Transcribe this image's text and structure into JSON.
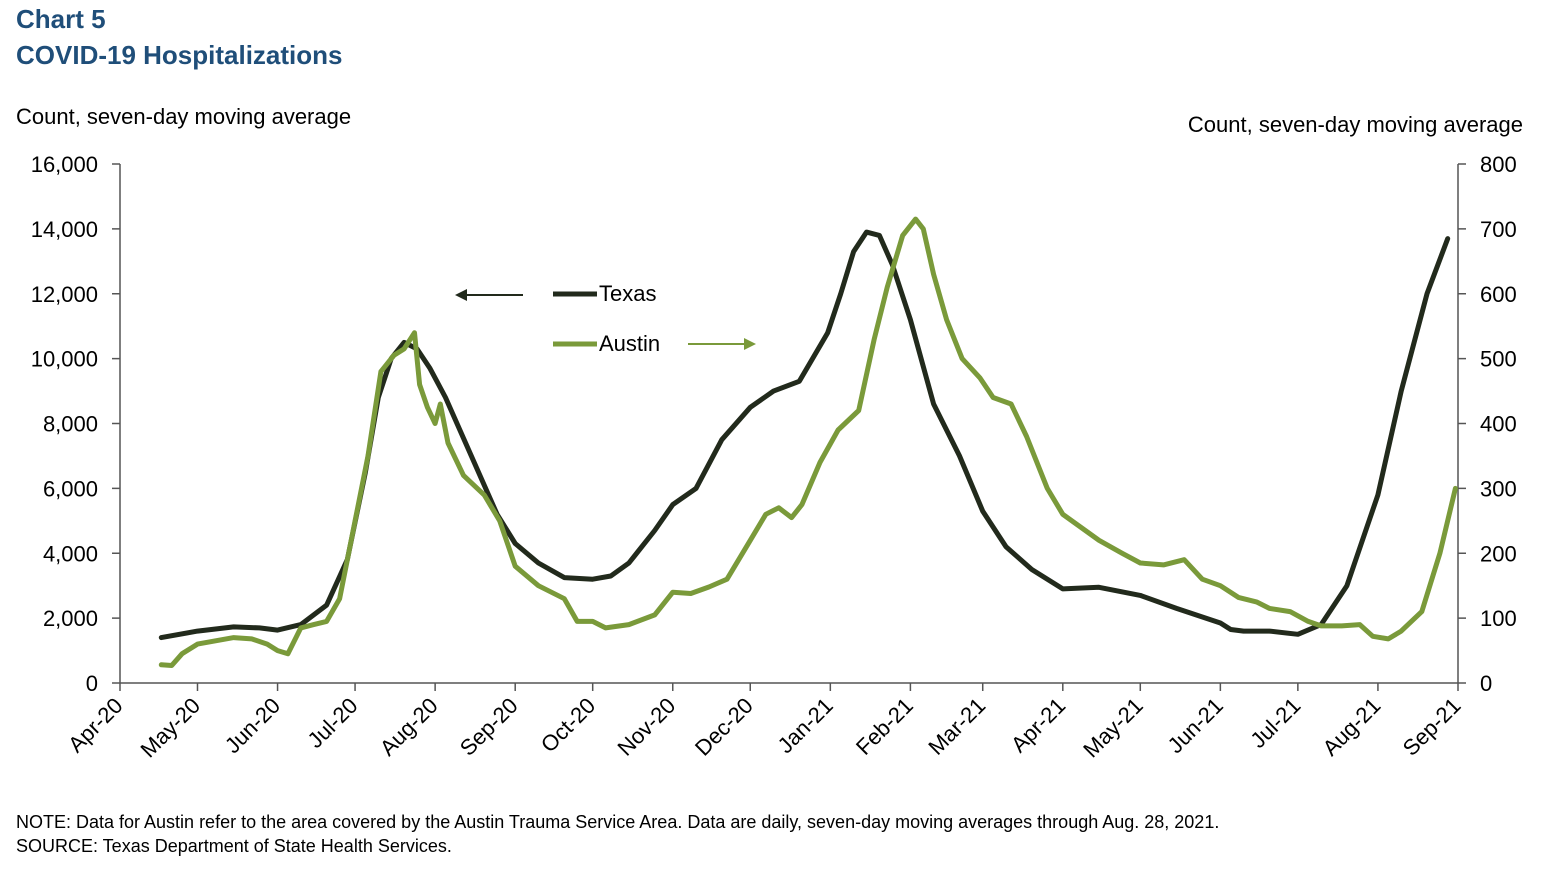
{
  "header": {
    "chart_number": "Chart 5",
    "title": "COVID-19 Hospitalizations"
  },
  "axis_labels": {
    "left": "Count, seven-day moving average",
    "right": "Count, seven-day moving average"
  },
  "footer": {
    "note": "NOTE: Data for Austin refer to the area covered by the Austin Trauma Service Area. Data are daily, seven-day moving averages through Aug. 28, 2021.",
    "source": "SOURCE: Texas Department of State Health Services."
  },
  "colors": {
    "title": "#1f4e79",
    "texas": "#222a1c",
    "austin": "#7a9a3a",
    "axis": "#555555"
  },
  "chart_data": {
    "type": "line",
    "title": "COVID-19 Hospitalizations",
    "xaxis": {
      "ticks": [
        "Apr-20",
        "May-20",
        "Jun-20",
        "Jul-20",
        "Aug-20",
        "Sep-20",
        "Oct-20",
        "Nov-20",
        "Dec-20",
        "Jan-21",
        "Feb-21",
        "Mar-21",
        "Apr-21",
        "May-21",
        "Jun-21",
        "Jul-21",
        "Aug-21",
        "Sep-21"
      ],
      "range": [
        "2020-04-01",
        "2021-09-01"
      ]
    },
    "yaxis_left": {
      "label": "Count, seven-day moving average",
      "ylim": [
        0,
        16000
      ],
      "ticks": [
        0,
        2000,
        4000,
        6000,
        8000,
        10000,
        12000,
        14000,
        16000
      ],
      "tick_labels": [
        "0",
        "2,000",
        "4,000",
        "6,000",
        "8,000",
        "10,000",
        "12,000",
        "14,000",
        "16,000"
      ]
    },
    "yaxis_right": {
      "label": "Count, seven-day moving average",
      "ylim": [
        0,
        800
      ],
      "ticks": [
        0,
        100,
        200,
        300,
        400,
        500,
        600,
        700,
        800
      ],
      "tick_labels": [
        "0",
        "100",
        "200",
        "300",
        "400",
        "500",
        "600",
        "700",
        "800"
      ]
    },
    "legend": {
      "placement": "center-left"
    },
    "series": [
      {
        "name": "Texas",
        "axis": "left",
        "points": [
          [
            "2020-04-17",
            1400
          ],
          [
            "2020-05-01",
            1600
          ],
          [
            "2020-05-15",
            1730
          ],
          [
            "2020-05-25",
            1700
          ],
          [
            "2020-06-01",
            1630
          ],
          [
            "2020-06-10",
            1800
          ],
          [
            "2020-06-20",
            2400
          ],
          [
            "2020-06-28",
            3800
          ],
          [
            "2020-07-05",
            6500
          ],
          [
            "2020-07-10",
            8800
          ],
          [
            "2020-07-15",
            10000
          ],
          [
            "2020-07-20",
            10500
          ],
          [
            "2020-07-25",
            10300
          ],
          [
            "2020-07-30",
            9700
          ],
          [
            "2020-08-05",
            8800
          ],
          [
            "2020-08-15",
            7000
          ],
          [
            "2020-08-25",
            5200
          ],
          [
            "2020-09-01",
            4300
          ],
          [
            "2020-09-10",
            3700
          ],
          [
            "2020-09-20",
            3250
          ],
          [
            "2020-10-01",
            3200
          ],
          [
            "2020-10-08",
            3300
          ],
          [
            "2020-10-15",
            3700
          ],
          [
            "2020-10-25",
            4700
          ],
          [
            "2020-11-01",
            5500
          ],
          [
            "2020-11-10",
            6000
          ],
          [
            "2020-11-20",
            7500
          ],
          [
            "2020-12-01",
            8500
          ],
          [
            "2020-12-10",
            9000
          ],
          [
            "2020-12-20",
            9300
          ],
          [
            "2020-12-31",
            10800
          ],
          [
            "2021-01-05",
            12000
          ],
          [
            "2021-01-10",
            13300
          ],
          [
            "2021-01-15",
            13900
          ],
          [
            "2021-01-20",
            13800
          ],
          [
            "2021-01-25",
            12900
          ],
          [
            "2021-02-01",
            11200
          ],
          [
            "2021-02-10",
            8600
          ],
          [
            "2021-02-20",
            7000
          ],
          [
            "2021-03-01",
            5300
          ],
          [
            "2021-03-10",
            4200
          ],
          [
            "2021-03-20",
            3500
          ],
          [
            "2021-04-01",
            2900
          ],
          [
            "2021-04-15",
            2950
          ],
          [
            "2021-05-01",
            2700
          ],
          [
            "2021-05-15",
            2300
          ],
          [
            "2021-06-01",
            1850
          ],
          [
            "2021-06-05",
            1650
          ],
          [
            "2021-06-10",
            1600
          ],
          [
            "2021-06-20",
            1600
          ],
          [
            "2021-07-01",
            1500
          ],
          [
            "2021-07-10",
            1800
          ],
          [
            "2021-07-20",
            3000
          ],
          [
            "2021-08-01",
            5800
          ],
          [
            "2021-08-10",
            9000
          ],
          [
            "2021-08-20",
            12000
          ],
          [
            "2021-08-28",
            13700
          ]
        ]
      },
      {
        "name": "Austin",
        "axis": "right",
        "points": [
          [
            "2020-04-17",
            28
          ],
          [
            "2020-04-21",
            27
          ],
          [
            "2020-04-25",
            45
          ],
          [
            "2020-05-01",
            60
          ],
          [
            "2020-05-08",
            65
          ],
          [
            "2020-05-15",
            70
          ],
          [
            "2020-05-22",
            68
          ],
          [
            "2020-05-28",
            60
          ],
          [
            "2020-06-01",
            50
          ],
          [
            "2020-06-05",
            45
          ],
          [
            "2020-06-10",
            85
          ],
          [
            "2020-06-15",
            90
          ],
          [
            "2020-06-20",
            95
          ],
          [
            "2020-06-25",
            130
          ],
          [
            "2020-07-01",
            250
          ],
          [
            "2020-07-06",
            350
          ],
          [
            "2020-07-11",
            480
          ],
          [
            "2020-07-16",
            505
          ],
          [
            "2020-07-20",
            515
          ],
          [
            "2020-07-24",
            540
          ],
          [
            "2020-07-26",
            460
          ],
          [
            "2020-07-29",
            425
          ],
          [
            "2020-08-01",
            400
          ],
          [
            "2020-08-03",
            430
          ],
          [
            "2020-08-06",
            370
          ],
          [
            "2020-08-12",
            320
          ],
          [
            "2020-08-20",
            290
          ],
          [
            "2020-08-26",
            250
          ],
          [
            "2020-09-01",
            180
          ],
          [
            "2020-09-10",
            150
          ],
          [
            "2020-09-20",
            130
          ],
          [
            "2020-09-25",
            95
          ],
          [
            "2020-10-01",
            95
          ],
          [
            "2020-10-06",
            85
          ],
          [
            "2020-10-15",
            90
          ],
          [
            "2020-10-25",
            105
          ],
          [
            "2020-11-01",
            140
          ],
          [
            "2020-11-08",
            138
          ],
          [
            "2020-11-15",
            148
          ],
          [
            "2020-11-22",
            160
          ],
          [
            "2020-12-01",
            220
          ],
          [
            "2020-12-07",
            260
          ],
          [
            "2020-12-12",
            270
          ],
          [
            "2020-12-17",
            255
          ],
          [
            "2020-12-21",
            275
          ],
          [
            "2020-12-28",
            340
          ],
          [
            "2021-01-04",
            390
          ],
          [
            "2021-01-12",
            420
          ],
          [
            "2021-01-18",
            530
          ],
          [
            "2021-01-23",
            610
          ],
          [
            "2021-01-29",
            690
          ],
          [
            "2021-02-03",
            715
          ],
          [
            "2021-02-06",
            700
          ],
          [
            "2021-02-10",
            630
          ],
          [
            "2021-02-15",
            560
          ],
          [
            "2021-02-21",
            500
          ],
          [
            "2021-02-28",
            470
          ],
          [
            "2021-03-05",
            440
          ],
          [
            "2021-03-12",
            430
          ],
          [
            "2021-03-18",
            380
          ],
          [
            "2021-03-26",
            300
          ],
          [
            "2021-04-01",
            260
          ],
          [
            "2021-04-08",
            240
          ],
          [
            "2021-04-15",
            220
          ],
          [
            "2021-04-24",
            200
          ],
          [
            "2021-05-01",
            185
          ],
          [
            "2021-05-10",
            182
          ],
          [
            "2021-05-18",
            190
          ],
          [
            "2021-05-25",
            160
          ],
          [
            "2021-06-01",
            150
          ],
          [
            "2021-06-08",
            132
          ],
          [
            "2021-06-15",
            125
          ],
          [
            "2021-06-20",
            115
          ],
          [
            "2021-06-28",
            110
          ],
          [
            "2021-07-05",
            95
          ],
          [
            "2021-07-10",
            88
          ],
          [
            "2021-07-18",
            88
          ],
          [
            "2021-07-25",
            90
          ],
          [
            "2021-07-30",
            72
          ],
          [
            "2021-08-05",
            68
          ],
          [
            "2021-08-10",
            80
          ],
          [
            "2021-08-18",
            110
          ],
          [
            "2021-08-25",
            200
          ],
          [
            "2021-08-31",
            300
          ],
          [
            "2021-08-05",
            ""
          ]
        ]
      }
    ],
    "annotations": [
      {
        "text": "←",
        "meaning": "Texas uses left axis"
      },
      {
        "text": "→",
        "meaning": "Austin uses right axis"
      }
    ]
  }
}
